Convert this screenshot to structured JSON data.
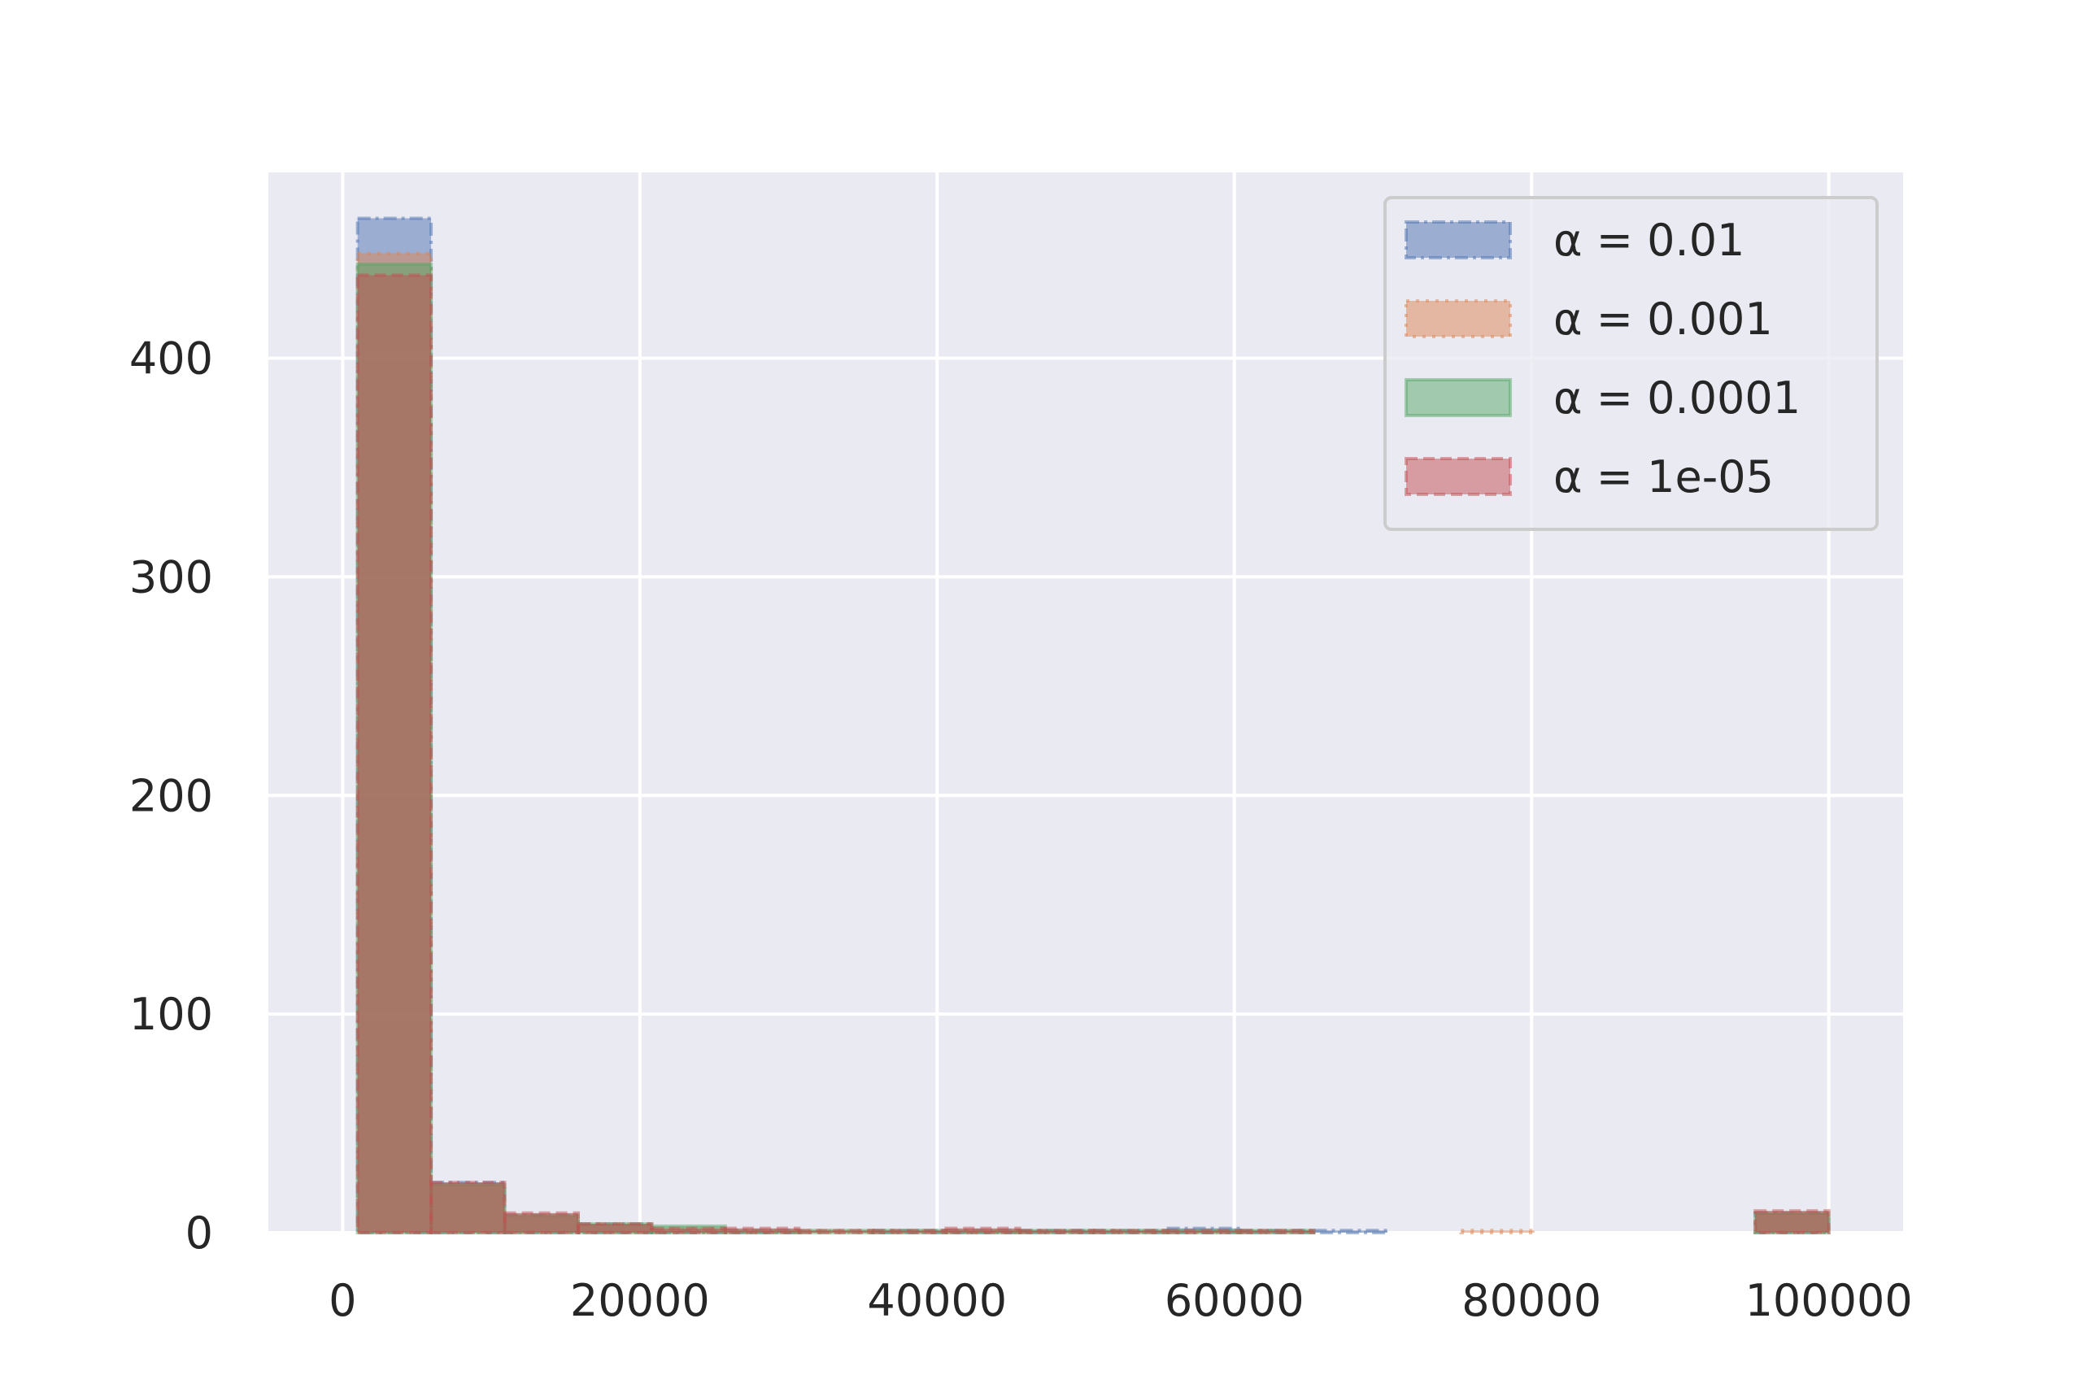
{
  "chart_data": {
    "type": "bar",
    "title": "",
    "xlabel": "",
    "ylabel": "",
    "xlim": [
      -5000,
      105000
    ],
    "ylim": [
      0,
      485
    ],
    "xticks": [
      0,
      20000,
      40000,
      60000,
      80000,
      100000
    ],
    "yticks": [
      0,
      100,
      200,
      300,
      400
    ],
    "xtick_labels": [
      "0",
      "20000",
      "40000",
      "60000",
      "80000",
      "100000"
    ],
    "ytick_labels": [
      "0",
      "100",
      "200",
      "300",
      "400"
    ],
    "grid": true,
    "legend_position": "top-right",
    "bin_edges": [
      1000,
      5950,
      10900,
      15850,
      20800,
      25750,
      30700,
      35650,
      40600,
      45550,
      50500,
      55450,
      60400,
      65350,
      70300,
      75250,
      80200,
      85150,
      90100,
      95050,
      100000
    ],
    "series": [
      {
        "name": "α = 0.01",
        "color": "#4c72b0",
        "linestyle": "dashdot",
        "values": [
          464,
          23,
          8,
          4,
          1,
          1,
          0,
          1,
          1,
          1,
          1,
          2,
          1,
          1,
          0,
          0,
          0,
          0,
          0,
          9
        ]
      },
      {
        "name": "α = 0.001",
        "color": "#dd8452",
        "linestyle": "dotted",
        "values": [
          448,
          22,
          8,
          4,
          2,
          1,
          1,
          1,
          1,
          1,
          1,
          1,
          1,
          0,
          0,
          1,
          0,
          0,
          0,
          9
        ]
      },
      {
        "name": "α = 0.0001",
        "color": "#55a868",
        "linestyle": "solid",
        "values": [
          443,
          22,
          8,
          4,
          3,
          1,
          1,
          1,
          1,
          1,
          1,
          1,
          1,
          0,
          0,
          0,
          0,
          0,
          0,
          9
        ]
      },
      {
        "name": "α = 1e-05",
        "color": "#c44e52",
        "linestyle": "dashed",
        "values": [
          438,
          23,
          9,
          4,
          2,
          2,
          1,
          1,
          2,
          1,
          1,
          1,
          1,
          0,
          0,
          0,
          0,
          0,
          0,
          10
        ]
      }
    ]
  }
}
